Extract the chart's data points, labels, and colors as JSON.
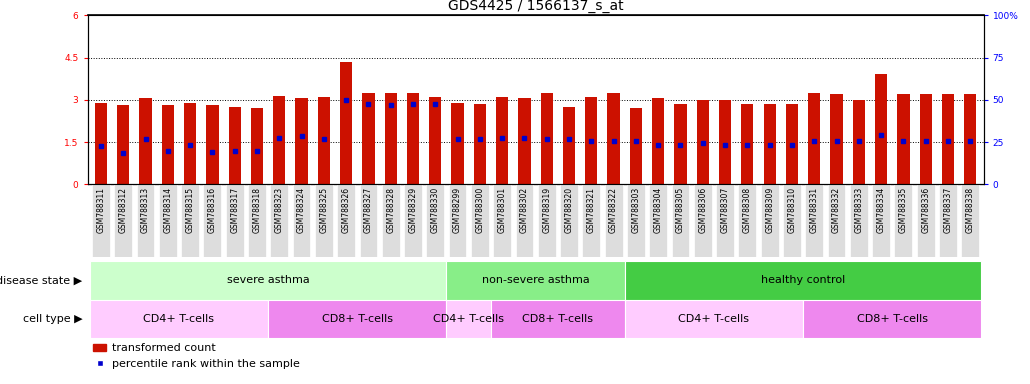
{
  "title": "GDS4425 / 1566137_s_at",
  "samples": [
    "GSM788311",
    "GSM788312",
    "GSM788313",
    "GSM788314",
    "GSM788315",
    "GSM788316",
    "GSM788317",
    "GSM788318",
    "GSM788323",
    "GSM788324",
    "GSM788325",
    "GSM788326",
    "GSM788327",
    "GSM788328",
    "GSM788329",
    "GSM788330",
    "GSM788299",
    "GSM788300",
    "GSM788301",
    "GSM788302",
    "GSM788319",
    "GSM788320",
    "GSM788321",
    "GSM788322",
    "GSM788303",
    "GSM788304",
    "GSM788305",
    "GSM788306",
    "GSM788307",
    "GSM788308",
    "GSM788309",
    "GSM788310",
    "GSM788331",
    "GSM788332",
    "GSM788333",
    "GSM788334",
    "GSM788335",
    "GSM788336",
    "GSM788337",
    "GSM788338"
  ],
  "bar_heights": [
    2.9,
    2.8,
    3.05,
    2.8,
    2.9,
    2.8,
    2.75,
    2.7,
    3.15,
    3.05,
    3.1,
    4.35,
    3.25,
    3.25,
    3.25,
    3.1,
    2.88,
    2.85,
    3.1,
    3.05,
    3.25,
    2.75,
    3.1,
    3.25,
    2.7,
    3.05,
    2.85,
    3.0,
    3.0,
    2.85,
    2.85,
    2.85,
    3.25,
    3.2,
    3.0,
    3.9,
    3.2,
    3.2,
    3.2,
    3.2
  ],
  "blue_marker_heights": [
    1.35,
    1.1,
    1.6,
    1.2,
    1.4,
    1.15,
    1.2,
    1.2,
    1.65,
    1.7,
    1.6,
    3.0,
    2.85,
    2.8,
    2.85,
    2.85,
    1.6,
    1.6,
    1.65,
    1.65,
    1.6,
    1.6,
    1.55,
    1.55,
    1.55,
    1.4,
    1.4,
    1.45,
    1.4,
    1.4,
    1.4,
    1.4,
    1.55,
    1.55,
    1.55,
    1.75,
    1.55,
    1.55,
    1.55,
    1.55
  ],
  "disease_state_groups": [
    {
      "label": "severe asthma",
      "start": 0,
      "end": 16,
      "color": "#ccffcc"
    },
    {
      "label": "non-severe asthma",
      "start": 16,
      "end": 24,
      "color": "#88ee88"
    },
    {
      "label": "healthy control",
      "start": 24,
      "end": 40,
      "color": "#44cc44"
    }
  ],
  "cell_type_groups": [
    {
      "label": "CD4+ T-cells",
      "start": 0,
      "end": 8,
      "color": "#ffccff"
    },
    {
      "label": "CD8+ T-cells",
      "start": 8,
      "end": 16,
      "color": "#ee88ee"
    },
    {
      "label": "CD4+ T-cells",
      "start": 16,
      "end": 18,
      "color": "#ffccff"
    },
    {
      "label": "CD8+ T-cells",
      "start": 18,
      "end": 24,
      "color": "#ee88ee"
    },
    {
      "label": "CD4+ T-cells",
      "start": 24,
      "end": 32,
      "color": "#ffccff"
    },
    {
      "label": "CD8+ T-cells",
      "start": 32,
      "end": 40,
      "color": "#ee88ee"
    }
  ],
  "ylim_left": [
    0,
    6
  ],
  "ylim_right": [
    0,
    100
  ],
  "yticks_left": [
    0,
    1.5,
    3.0,
    4.5,
    6.0
  ],
  "yticks_right": [
    0,
    25,
    50,
    75,
    100
  ],
  "ytick_labels_left": [
    "0",
    "1.5",
    "3",
    "4.5",
    "6"
  ],
  "ytick_labels_right": [
    "0",
    "25",
    "50",
    "75",
    "100%"
  ],
  "hlines": [
    1.5,
    3.0,
    4.5
  ],
  "bar_color": "#cc1100",
  "marker_color": "#0000cc",
  "title_fontsize": 10,
  "tick_fontsize": 6.5,
  "label_fontsize": 8,
  "legend_fontsize": 8,
  "row_label_fontsize": 8,
  "sample_fontsize": 5.5
}
